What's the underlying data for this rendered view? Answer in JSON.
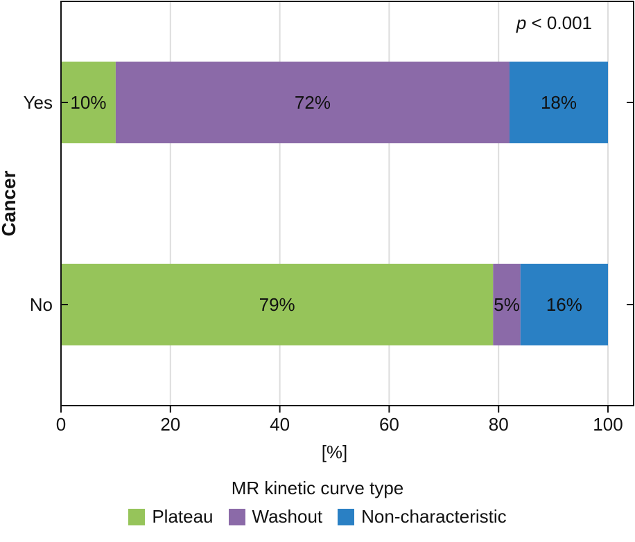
{
  "chart_data": {
    "type": "bar",
    "orientation": "horizontal",
    "stacked": true,
    "categories": [
      "Yes",
      "No"
    ],
    "series": [
      {
        "name": "Plateau",
        "values": [
          10,
          79
        ],
        "labels": [
          "10%",
          "79%"
        ],
        "color": "#96c45a"
      },
      {
        "name": "Washout",
        "values": [
          72,
          5
        ],
        "labels": [
          "72%",
          "5%"
        ],
        "color": "#8b6aa8"
      },
      {
        "name": "Non-characteristic",
        "values": [
          18,
          16
        ],
        "labels": [
          "18%",
          "16%"
        ],
        "color": "#2a80c4"
      }
    ],
    "xlabel": "[%]",
    "ylabel": "Cancer",
    "xlim": [
      0,
      100
    ],
    "xticks": [
      0,
      20,
      40,
      60,
      80,
      100
    ],
    "xtick_labels": [
      "0",
      "20",
      "40",
      "60",
      "80",
      "100"
    ],
    "grid": true,
    "annotation": {
      "italic": "p",
      "text": " < 0.001"
    },
    "legend": {
      "title": "MR kinetic curve type",
      "placement": "bottom"
    }
  }
}
